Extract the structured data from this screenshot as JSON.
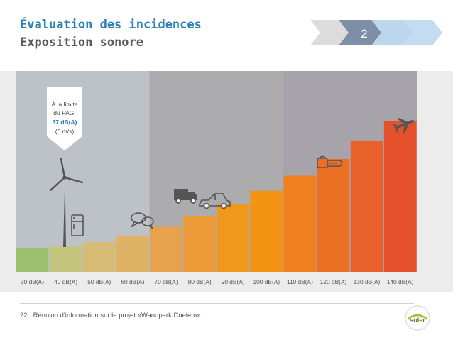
{
  "header": {
    "title": "Évaluation des incidences",
    "subtitle": "Exposition sonore"
  },
  "progress": {
    "active_step_label": "2",
    "steps_total": 5,
    "active_step": 2,
    "colors": {
      "done": "#dcdcdc",
      "active": "#7d8fa6",
      "upcoming": "#bcd6ee"
    }
  },
  "callout": {
    "line1": "À la limite",
    "line2": "du PAG:",
    "value": "37 dB(A)",
    "line4": "(6 m/s)"
  },
  "chart_data": {
    "type": "bar",
    "categories": [
      "30 dB(A)",
      "40 dB(A)",
      "50 dB(A)",
      "60 dB(A)",
      "70 dB(A)",
      "80 dB(A)",
      "90 dB(A)",
      "100 dB(A)",
      "110 dB(A)",
      "120 dB(A)",
      "130 dB(A)",
      "140 dB(A)"
    ],
    "values": [
      30,
      40,
      50,
      60,
      70,
      80,
      90,
      100,
      110,
      120,
      130,
      140
    ],
    "bar_colors": [
      "#9cbf6e",
      "#c4c57c",
      "#d5bb74",
      "#dfb266",
      "#e7a24d",
      "#ee9c3a",
      "#f1981c",
      "#f39312",
      "#ef7f1f",
      "#ec7024",
      "#e8602a",
      "#e4512b"
    ],
    "zones": [
      {
        "from": "30 dB(A)",
        "to": "60 dB(A)",
        "color": "#bdc2c9"
      },
      {
        "from": "70 dB(A)",
        "to": "100 dB(A)",
        "color": "#acabae"
      },
      {
        "from": "110 dB(A)",
        "to": "140 dB(A)",
        "color": "#a7a3aa"
      }
    ],
    "icons": [
      {
        "name": "wind-turbine-icon",
        "category": "30 dB(A)"
      },
      {
        "name": "refrigerator-icon",
        "category": "40 dB(A)"
      },
      {
        "name": "speech-bubbles-icon",
        "category": "60 dB(A)"
      },
      {
        "name": "truck-icon",
        "category": "70 dB(A)"
      },
      {
        "name": "car-icon",
        "category": "80 dB(A)"
      },
      {
        "name": "chainsaw-icon",
        "category": "120 dB(A)"
      },
      {
        "name": "airplane-icon",
        "category": "140 dB(A)"
      }
    ]
  },
  "footer": {
    "page_number": "22",
    "text": "Réunion d'information sur le projet «Wandpark Duelem»",
    "logo_text": "soler",
    "logo_color": "#9dc03b"
  }
}
